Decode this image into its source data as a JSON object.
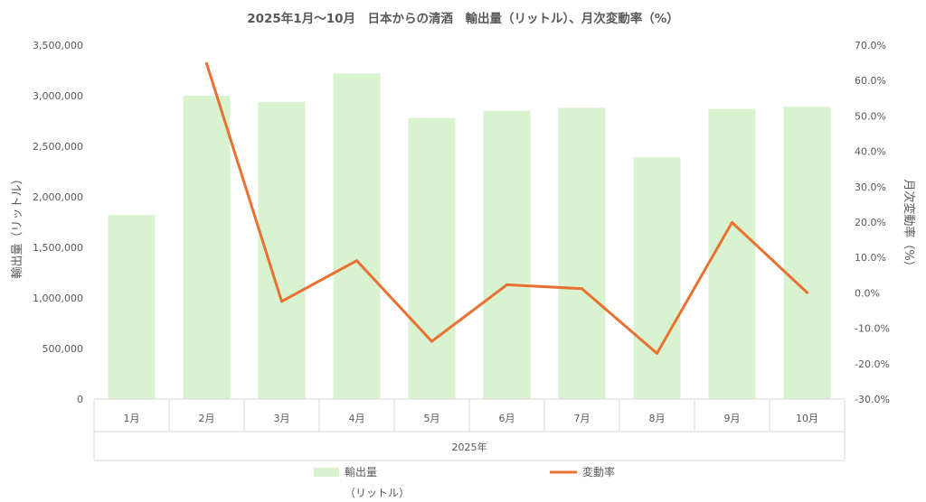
{
  "chart_data": {
    "type": "bar+line",
    "title": "2025年1月〜10月　日本からの清酒　輸出量（リットル）、月次変動率（%）",
    "categories": [
      "1月",
      "2月",
      "3月",
      "4月",
      "5月",
      "6月",
      "7月",
      "8月",
      "9月",
      "10月"
    ],
    "category_group_label": "2025年",
    "series": [
      {
        "name": "輸出量（リットル）",
        "kind": "bar",
        "axis": "left",
        "color": "#d9f2d0",
        "values": [
          1820000,
          3000000,
          2940000,
          3220000,
          2780000,
          2850000,
          2880000,
          2390000,
          2870000,
          2890000
        ]
      },
      {
        "name": "変動率",
        "kind": "line",
        "axis": "right",
        "color": "#e97132",
        "values": [
          null,
          64.8,
          -2.4,
          9.1,
          -13.7,
          2.3,
          1.2,
          -17.1,
          19.9,
          0.1
        ]
      }
    ],
    "y_left": {
      "label": "輸出量（リットル）",
      "min": 0,
      "max": 3500000,
      "ticks": [
        "0",
        "500,000",
        "1,000,000",
        "1,500,000",
        "2,000,000",
        "2,500,000",
        "3,000,000",
        "3,500,000"
      ]
    },
    "y_right": {
      "label": "月次変動率（%）",
      "min": -30,
      "max": 70,
      "ticks": [
        "-30.0%",
        "-20.0%",
        "-10.0%",
        "0.0%",
        "10.0%",
        "20.0%",
        "30.0%",
        "40.0%",
        "50.0%",
        "60.0%",
        "70.0%"
      ]
    },
    "legend": {
      "position": "bottom",
      "items": [
        {
          "label_line1": "輸出量",
          "label_line2": "（リットル）",
          "color": "#d9f2d0",
          "kind": "bar"
        },
        {
          "label_line1": "変動率",
          "label_line2": "",
          "color": "#e97132",
          "kind": "line"
        }
      ]
    },
    "grid": false
  }
}
